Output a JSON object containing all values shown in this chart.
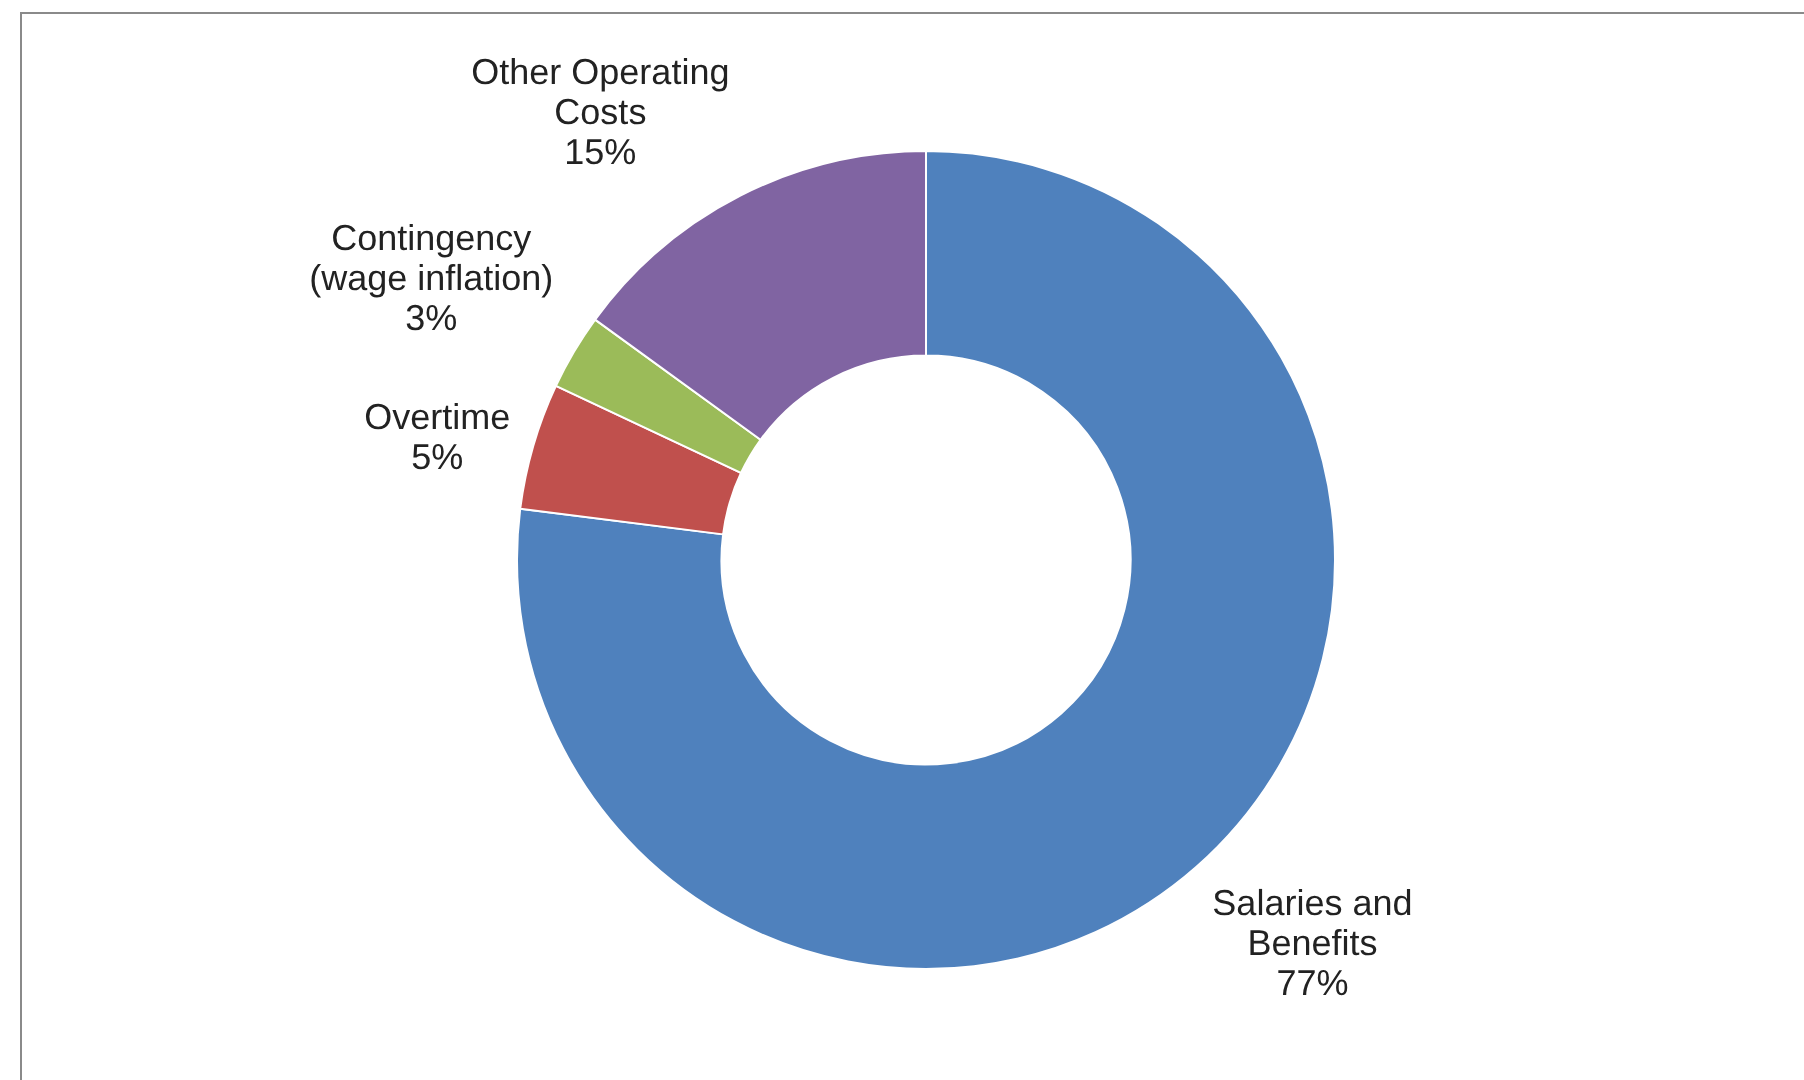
{
  "chart_data": {
    "type": "donut",
    "categories": [
      "Salaries and Benefits",
      "Overtime",
      "Contingency (wage inflation)",
      "Other Operating Costs"
    ],
    "values": [
      77,
      5,
      3,
      15
    ],
    "value_labels": [
      "77%",
      "5%",
      "3%",
      "15%"
    ],
    "colors": [
      "#4f81bd",
      "#c0504d",
      "#9bbb59",
      "#8064a2"
    ],
    "legend": false
  }
}
